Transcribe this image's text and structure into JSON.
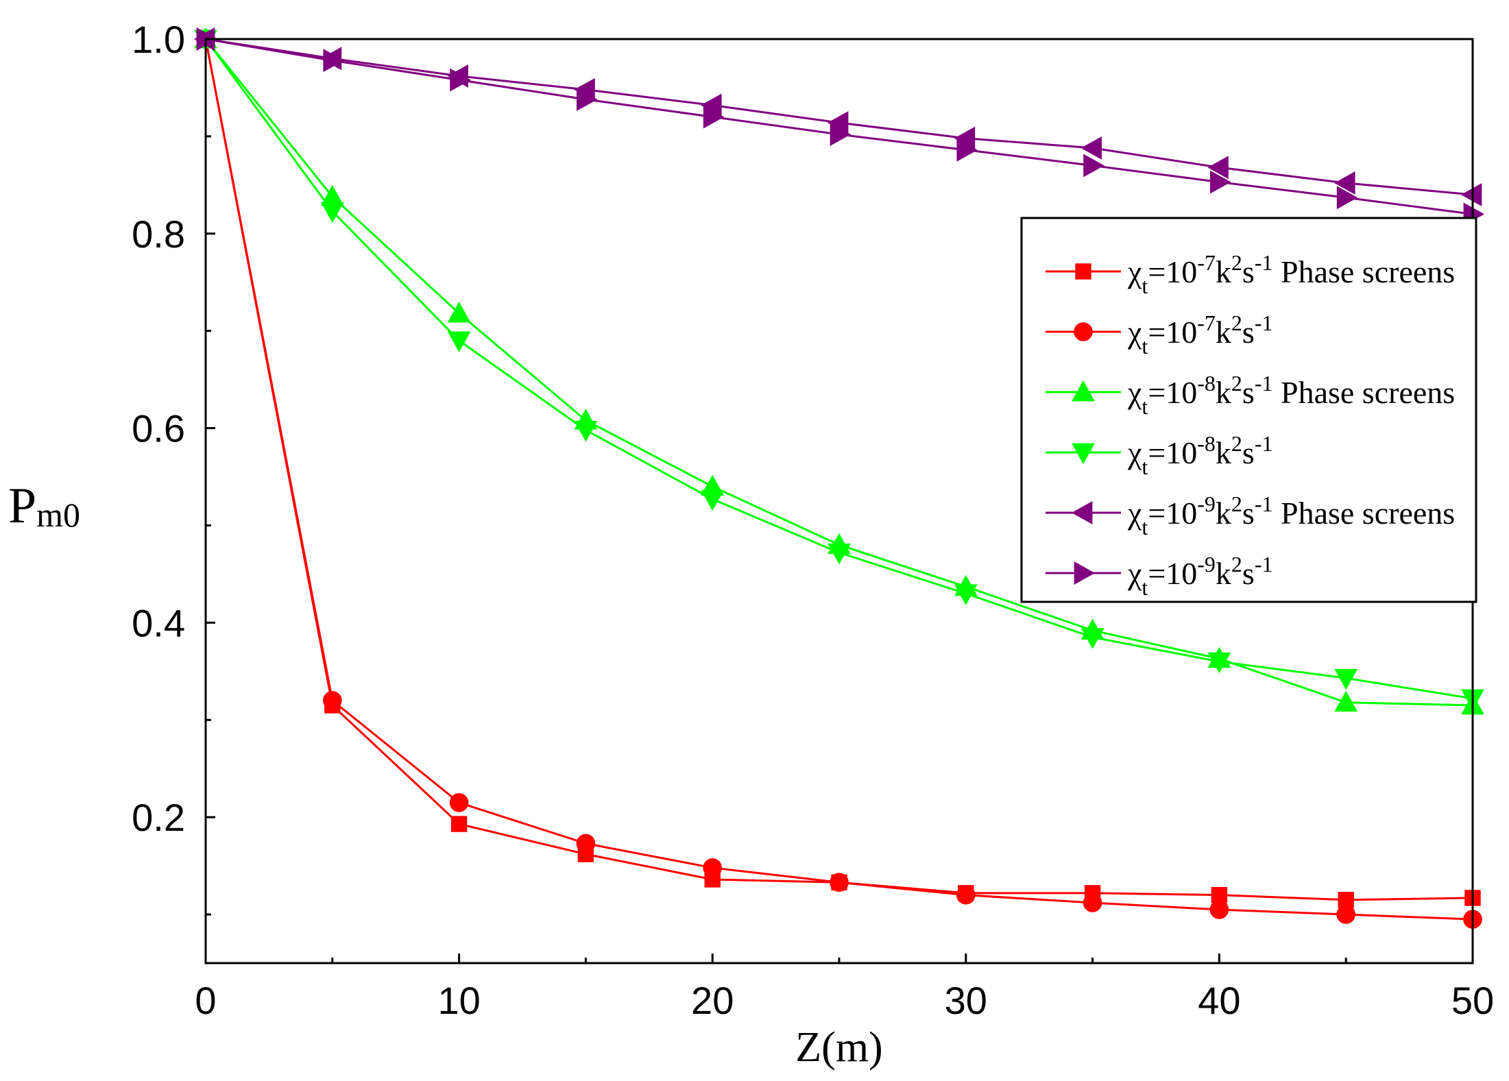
{
  "chart_data": {
    "type": "line",
    "title": "",
    "xlabel": "Z(m)",
    "ylabel": {
      "main": "P",
      "sub": "m0"
    },
    "xlim": [
      0,
      50
    ],
    "ylim": [
      0.05,
      1.0
    ],
    "x_ticks": [
      0,
      10,
      20,
      30,
      40,
      50
    ],
    "x_tick_labels": [
      "0",
      "10",
      "20",
      "30",
      "40",
      "50"
    ],
    "y_ticks": [
      0.2,
      0.4,
      0.6,
      0.8,
      1.0
    ],
    "y_tick_labels": [
      "0.2",
      "0.4",
      "0.6",
      "0.8",
      "1.0"
    ],
    "legend_position": "right",
    "x": [
      0,
      5,
      10,
      15,
      20,
      25,
      30,
      35,
      40,
      45,
      50
    ],
    "series": [
      {
        "name": "χt=10-7k2s-1 Phase screens",
        "legend": {
          "sym": "χ",
          "sub": "t",
          "base": "=10",
          "exp": "-7",
          "k": "k",
          "k_exp": "2",
          "s": "s",
          "s_exp": "-1",
          "suffix": " Phase screens"
        },
        "color": "#ff0000",
        "marker": "square",
        "values": [
          1.0,
          0.315,
          0.193,
          0.162,
          0.136,
          0.133,
          0.122,
          0.122,
          0.12,
          0.115,
          0.117
        ]
      },
      {
        "name": "χt=10-7k2s-1",
        "legend": {
          "sym": "χ",
          "sub": "t",
          "base": "=10",
          "exp": "-7",
          "k": "k",
          "k_exp": "2",
          "s": "s",
          "s_exp": "-1",
          "suffix": ""
        },
        "color": "#ff0000",
        "marker": "circle",
        "values": [
          1.0,
          0.32,
          0.215,
          0.173,
          0.148,
          0.133,
          0.12,
          0.112,
          0.105,
          0.1,
          0.095
        ]
      },
      {
        "name": "χt=10-8k2s-1 Phase screens",
        "legend": {
          "sym": "χ",
          "sub": "t",
          "base": "=10",
          "exp": "-8",
          "k": "k",
          "k_exp": "2",
          "s": "s",
          "s_exp": "-1",
          "suffix": " Phase screens"
        },
        "color": "#00ff00",
        "marker": "triangle-up",
        "values": [
          1.0,
          0.838,
          0.718,
          0.608,
          0.54,
          0.48,
          0.437,
          0.392,
          0.363,
          0.318,
          0.315
        ]
      },
      {
        "name": "χt=10-8k2s-1",
        "legend": {
          "sym": "χ",
          "sub": "t",
          "base": "=10",
          "exp": "-8",
          "k": "k",
          "k_exp": "2",
          "s": "s",
          "s_exp": "-1",
          "suffix": ""
        },
        "color": "#00ff00",
        "marker": "triangle-down",
        "values": [
          1.0,
          0.823,
          0.69,
          0.598,
          0.527,
          0.472,
          0.43,
          0.385,
          0.36,
          0.343,
          0.322
        ]
      },
      {
        "name": "χt=10-9k2s-1 Phase screens",
        "legend": {
          "sym": "χ",
          "sub": "t",
          "base": "=10",
          "exp": "-9",
          "k": "k",
          "k_exp": "2",
          "s": "s",
          "s_exp": "-1",
          "suffix": " Phase screens"
        },
        "color": "#800080",
        "marker": "triangle-left",
        "values": [
          1.0,
          0.98,
          0.962,
          0.948,
          0.932,
          0.914,
          0.898,
          0.888,
          0.868,
          0.852,
          0.84
        ]
      },
      {
        "name": "χt=10-9k2s-1",
        "legend": {
          "sym": "χ",
          "sub": "t",
          "base": "=10",
          "exp": "-9",
          "k": "k",
          "k_exp": "2",
          "s": "s",
          "s_exp": "-1",
          "suffix": ""
        },
        "color": "#800080",
        "marker": "triangle-right",
        "values": [
          1.0,
          0.978,
          0.958,
          0.938,
          0.92,
          0.902,
          0.886,
          0.87,
          0.853,
          0.837,
          0.82
        ]
      }
    ]
  }
}
